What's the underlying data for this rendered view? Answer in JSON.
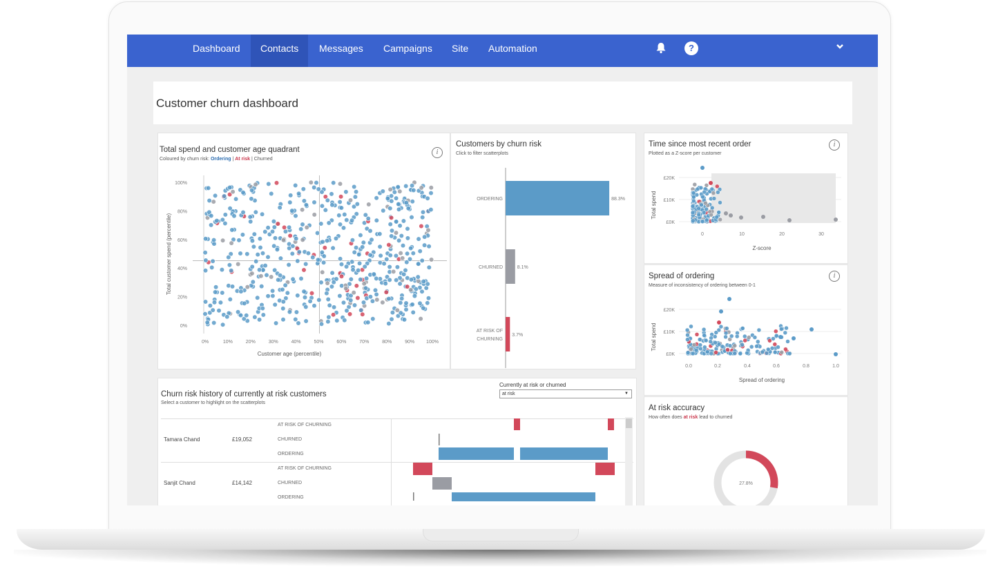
{
  "nav": {
    "items": [
      {
        "label": "Dashboard"
      },
      {
        "label": "Contacts"
      },
      {
        "label": "Messages"
      },
      {
        "label": "Campaigns"
      },
      {
        "label": "Site"
      },
      {
        "label": "Automation"
      }
    ],
    "active": "Contacts",
    "icons": [
      "bell-icon",
      "help-icon",
      "chevron-down-icon"
    ],
    "accent": "#3a63cf"
  },
  "page": {
    "title": "Customer churn dashboard"
  },
  "colors": {
    "ordering": "#5b9bc8",
    "at_risk": "#d2485a",
    "churned": "#9a9ca3"
  },
  "quadrant": {
    "title": "Total spend and customer age quadrant",
    "subtitle_prefix": "Coloured by churn risk:",
    "legend_ordering": "Ordering",
    "legend_sep": "|",
    "legend_at_risk": "At risk",
    "legend_churned": "Churned",
    "y_label": "Total customer spend (percentile)",
    "x_label": "Customer age (percentile)",
    "y_ticks": [
      "100%",
      "80%",
      "60%",
      "40%",
      "20%",
      "0%"
    ],
    "x_ticks": [
      "0%",
      "10%",
      "20%",
      "30%",
      "40%",
      "50%",
      "60%",
      "70%",
      "80%",
      "90%",
      "100%"
    ]
  },
  "churn_risk": {
    "title": "Customers by churn risk",
    "subtitle": "Click to filter scatterplots"
  },
  "recency": {
    "title": "Time since most recent order",
    "subtitle": "Plotted as a Z-score per customer",
    "y_label": "Total spend",
    "x_label": "Z-score",
    "y_ticks": [
      "£20K",
      "£10K",
      "£0K"
    ],
    "x_ticks": [
      "0",
      "10",
      "20",
      "30"
    ]
  },
  "spread": {
    "title": "Spread of ordering",
    "subtitle": "Measure of inconsistency of ordering between 0-1",
    "y_label": "Total spend",
    "x_label": "Spread of ordering",
    "y_ticks": [
      "£20K",
      "£10K",
      "£0K"
    ],
    "x_ticks": [
      "0.0",
      "0.2",
      "0.4",
      "0.6",
      "0.8",
      "1.0"
    ]
  },
  "history": {
    "title": "Churn risk history of currently at risk customers",
    "subtitle": "Select a customer to highlight on the scatterplots",
    "filter_label": "Currently at risk or churned",
    "filter_value": "at risk",
    "status_labels": [
      "AT RISK OF CHURNING",
      "CHURNED",
      "ORDERING"
    ],
    "customers": [
      {
        "name": "Tamara Chand",
        "spend": "£19,052"
      },
      {
        "name": "Sanjit Chand",
        "spend": "£14,142"
      }
    ]
  },
  "accuracy": {
    "title": "At risk accuracy",
    "subtitle_prefix": "How often does",
    "subtitle_highlight": "at risk",
    "subtitle_suffix": "lead to churned",
    "value_label": "27.8%"
  },
  "chart_data": [
    {
      "type": "bar",
      "title": "Customers by churn risk",
      "categories": [
        "ORDERING",
        "CHURNED",
        "AT RISK OF CHURNING"
      ],
      "values": [
        88.3,
        8.1,
        3.7
      ],
      "value_labels": [
        "88.3%",
        "8.1%",
        "3.7%"
      ],
      "colors": [
        "#5b9bc8",
        "#9a9ca3",
        "#d2485a"
      ]
    },
    {
      "type": "pie",
      "title": "At risk accuracy",
      "values": [
        27.8,
        72.2
      ],
      "colors": [
        "#d2485a",
        "#e3e3e3"
      ]
    },
    {
      "type": "scatter",
      "title": "Total spend and customer age quadrant",
      "xlabel": "Customer age (percentile)",
      "ylabel": "Total customer spend (percentile)",
      "xlim": [
        0,
        100
      ],
      "ylim": [
        0,
        100
      ],
      "point_count_estimate": 600
    }
  ]
}
